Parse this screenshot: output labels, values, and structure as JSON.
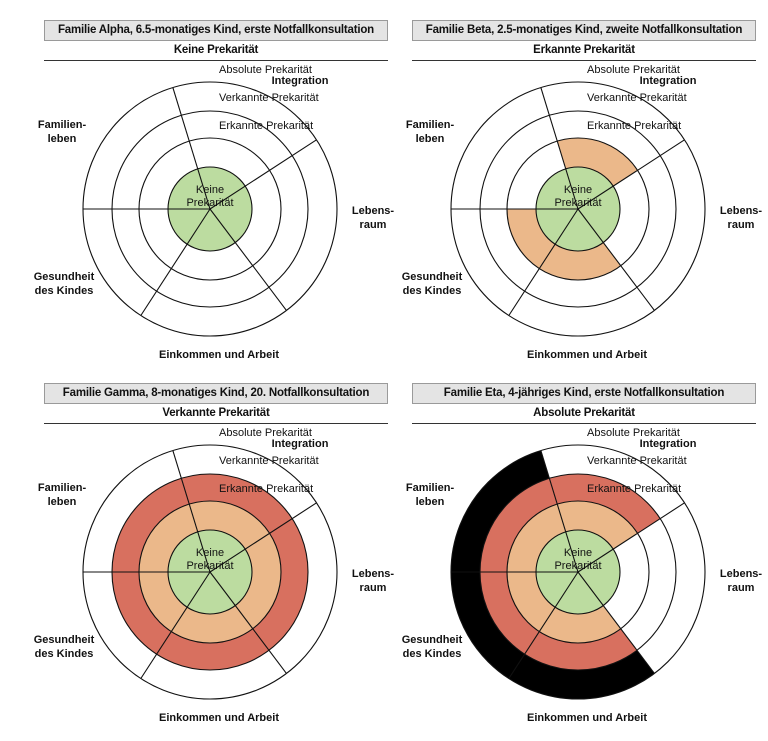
{
  "colors": {
    "keine": "#bcdca0",
    "erkannte": "#ebb88a",
    "verkannte": "#d8705f",
    "absolute": "#000000",
    "empty": "#ffffff",
    "stroke": "#111111"
  },
  "ring_labels": [
    "Keine",
    "Prekarität",
    "Erkannte Prekarität",
    "Verkannte Prekarität",
    "Absolute Prekarität"
  ],
  "dimensions": [
    {
      "id": "integration",
      "lines": [
        "Integration"
      ]
    },
    {
      "id": "lebensraum",
      "lines": [
        "Lebens-",
        "raum"
      ]
    },
    {
      "id": "einkommen",
      "lines": [
        "Einkommen und Arbeit"
      ]
    },
    {
      "id": "gesundheit",
      "lines": [
        "Gesundheit",
        "des Kindes"
      ]
    },
    {
      "id": "familienleben",
      "lines": [
        "Familien-",
        "leben"
      ]
    }
  ],
  "panels": [
    {
      "title": "Familie Alpha, 6.5-monatiges Kind, erste Notfallkonsultation",
      "status": "Keine Prekarität",
      "levels": {
        "integration": 1,
        "lebensraum": 1,
        "einkommen": 1,
        "gesundheit": 1,
        "familienleben": 1
      }
    },
    {
      "title": "Familie Beta, 2.5-monatiges Kind, zweite Notfallkonsultation",
      "status": "Erkannte Prekarität",
      "levels": {
        "integration": 2,
        "lebensraum": 1,
        "einkommen": 2,
        "gesundheit": 2,
        "familienleben": 1
      }
    },
    {
      "title": "Familie Gamma, 8-monatiges Kind, 20. Notfallkonsultation",
      "status": "Verkannte Prekarität",
      "levels": {
        "integration": 3,
        "lebensraum": 3,
        "einkommen": 3,
        "gesundheit": 3,
        "familienleben": 3
      }
    },
    {
      "title": "Familie Eta, 4-jähriges Kind, erste Notfallkonsultation",
      "status": "Absolute Prekarität",
      "levels": {
        "integration": 3,
        "lebensraum": 1,
        "einkommen": 4,
        "gesundheit": 4,
        "familienleben": 4
      }
    }
  ]
}
